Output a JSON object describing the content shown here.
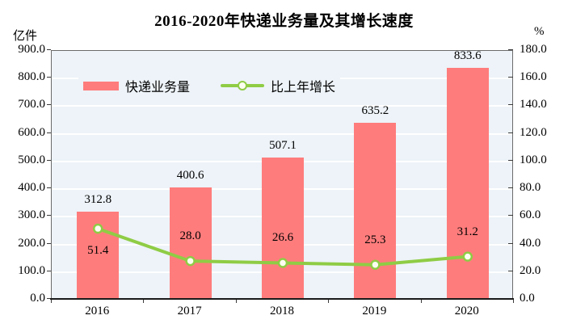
{
  "title": "2016-2020年快递业务量及其增长速度",
  "left_axis": {
    "unit": "亿件",
    "ticks": [
      "0.0",
      "100.0",
      "200.0",
      "300.0",
      "400.0",
      "500.0",
      "600.0",
      "700.0",
      "800.0",
      "900.0"
    ]
  },
  "right_axis": {
    "unit": "%",
    "ticks": [
      "0.0",
      "20.0",
      "40.0",
      "60.0",
      "80.0",
      "100.0",
      "120.0",
      "140.0",
      "160.0",
      "180.0"
    ]
  },
  "legend": [
    {
      "label": "快递业务量",
      "type": "bar"
    },
    {
      "label": "比上年增长",
      "type": "line"
    }
  ],
  "chart_data": {
    "type": "combo-bar-line",
    "title": "2016-2020年快递业务量及其增长速度",
    "categories": [
      "2016",
      "2017",
      "2018",
      "2019",
      "2020"
    ],
    "series": [
      {
        "name": "快递业务量",
        "type": "bar",
        "axis": "left",
        "unit": "亿件",
        "values": [
          312.8,
          400.6,
          507.1,
          635.2,
          833.6
        ],
        "data_labels": [
          "312.8",
          "400.6",
          "507.1",
          "635.2",
          "833.6"
        ]
      },
      {
        "name": "比上年增长",
        "type": "line",
        "axis": "right",
        "unit": "%",
        "values": [
          51.4,
          28.0,
          26.6,
          25.3,
          31.2
        ],
        "data_labels": [
          "51.4",
          "28.0",
          "26.6",
          "25.3",
          "31.2"
        ]
      }
    ],
    "left_ylim": [
      0,
      900
    ],
    "left_step": 100,
    "right_ylim": [
      0,
      180
    ],
    "right_step": 20,
    "grid": true,
    "legend_position": "inside-top-left"
  },
  "colors": {
    "bar": "#FF7C7C",
    "line": "#8FCC45",
    "marker_fill": "#FDFEF2",
    "plot_bg": "#EDF3F8",
    "grid": "#FFFFFF",
    "border": "#6B6B6B",
    "axis": "#1A1A1A",
    "text": "#000000"
  }
}
